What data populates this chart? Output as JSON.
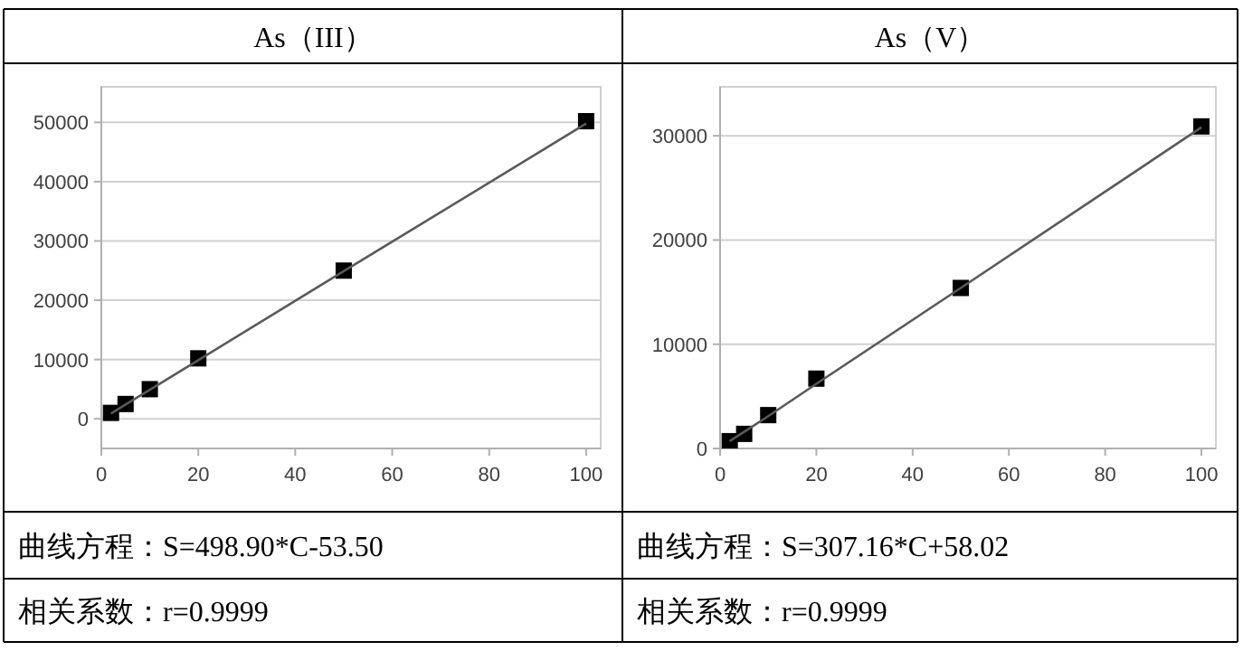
{
  "chart_data": [
    {
      "type": "scatter",
      "title": "As（III）",
      "x": [
        2,
        5,
        10,
        20,
        50,
        100
      ],
      "xlim": [
        0,
        103
      ],
      "xticks": [
        0,
        20,
        40,
        60,
        80,
        100
      ],
      "ylim": [
        -5000,
        56000
      ],
      "yticks": [
        0,
        10000,
        20000,
        30000,
        40000,
        50000
      ],
      "grid": "y",
      "marker": "square",
      "series": [
        {
          "color": "#000000",
          "values": [
            1000,
            2500,
            5000,
            10200,
            25000,
            50200
          ]
        },
        {
          "type": "line",
          "color": "#595959",
          "values": [
            900,
            2400,
            4900,
            9900,
            24900,
            49800
          ],
          "marker": "none"
        }
      ],
      "annotations": [
        "曲线方程：S=498.90*C-53.50",
        "相关系数：r=0.9999"
      ]
    },
    {
      "type": "scatter",
      "title": "As（V）",
      "x": [
        2,
        5,
        10,
        20,
        50,
        100
      ],
      "xlim": [
        0,
        103
      ],
      "xticks": [
        0,
        20,
        40,
        60,
        80,
        100
      ],
      "ylim": [
        0,
        34700
      ],
      "yticks": [
        0,
        10000,
        20000,
        30000
      ],
      "grid": "y",
      "marker": "square",
      "series": [
        {
          "color": "#000000",
          "values": [
            700,
            1400,
            3200,
            6700,
            15400,
            30900
          ]
        },
        {
          "type": "line",
          "color": "#595959",
          "values": [
            700,
            1600,
            3100,
            6200,
            15400,
            30800
          ],
          "marker": "none"
        }
      ],
      "annotations": [
        "曲线方程：S=307.16*C+58.02",
        "相关系数：r=0.9999"
      ]
    }
  ]
}
